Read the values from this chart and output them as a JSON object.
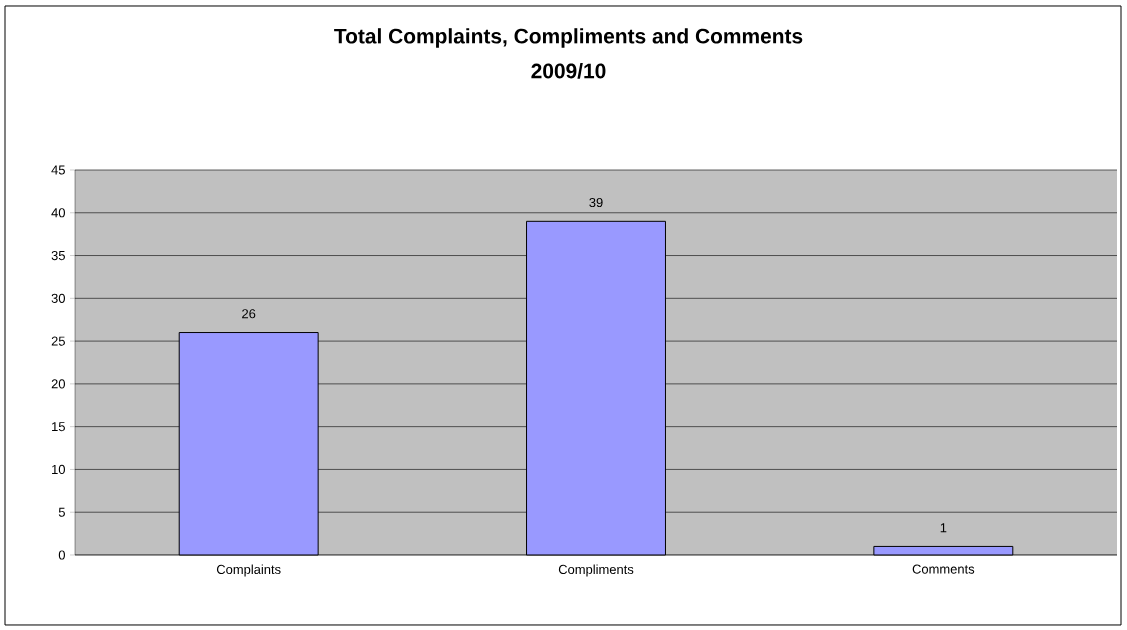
{
  "chart_data": {
    "type": "bar",
    "title": "Total Complaints, Compliments and Comments\n2009/10",
    "categories": [
      "Complaints",
      "Compliments",
      "Comments"
    ],
    "values": [
      26,
      39,
      1
    ],
    "color": "#9999ff",
    "data_labels": true,
    "grid": "y",
    "ylim": [
      0,
      45
    ],
    "yticks": [
      0,
      5,
      10,
      15,
      20,
      25,
      30,
      35,
      40,
      45
    ]
  }
}
